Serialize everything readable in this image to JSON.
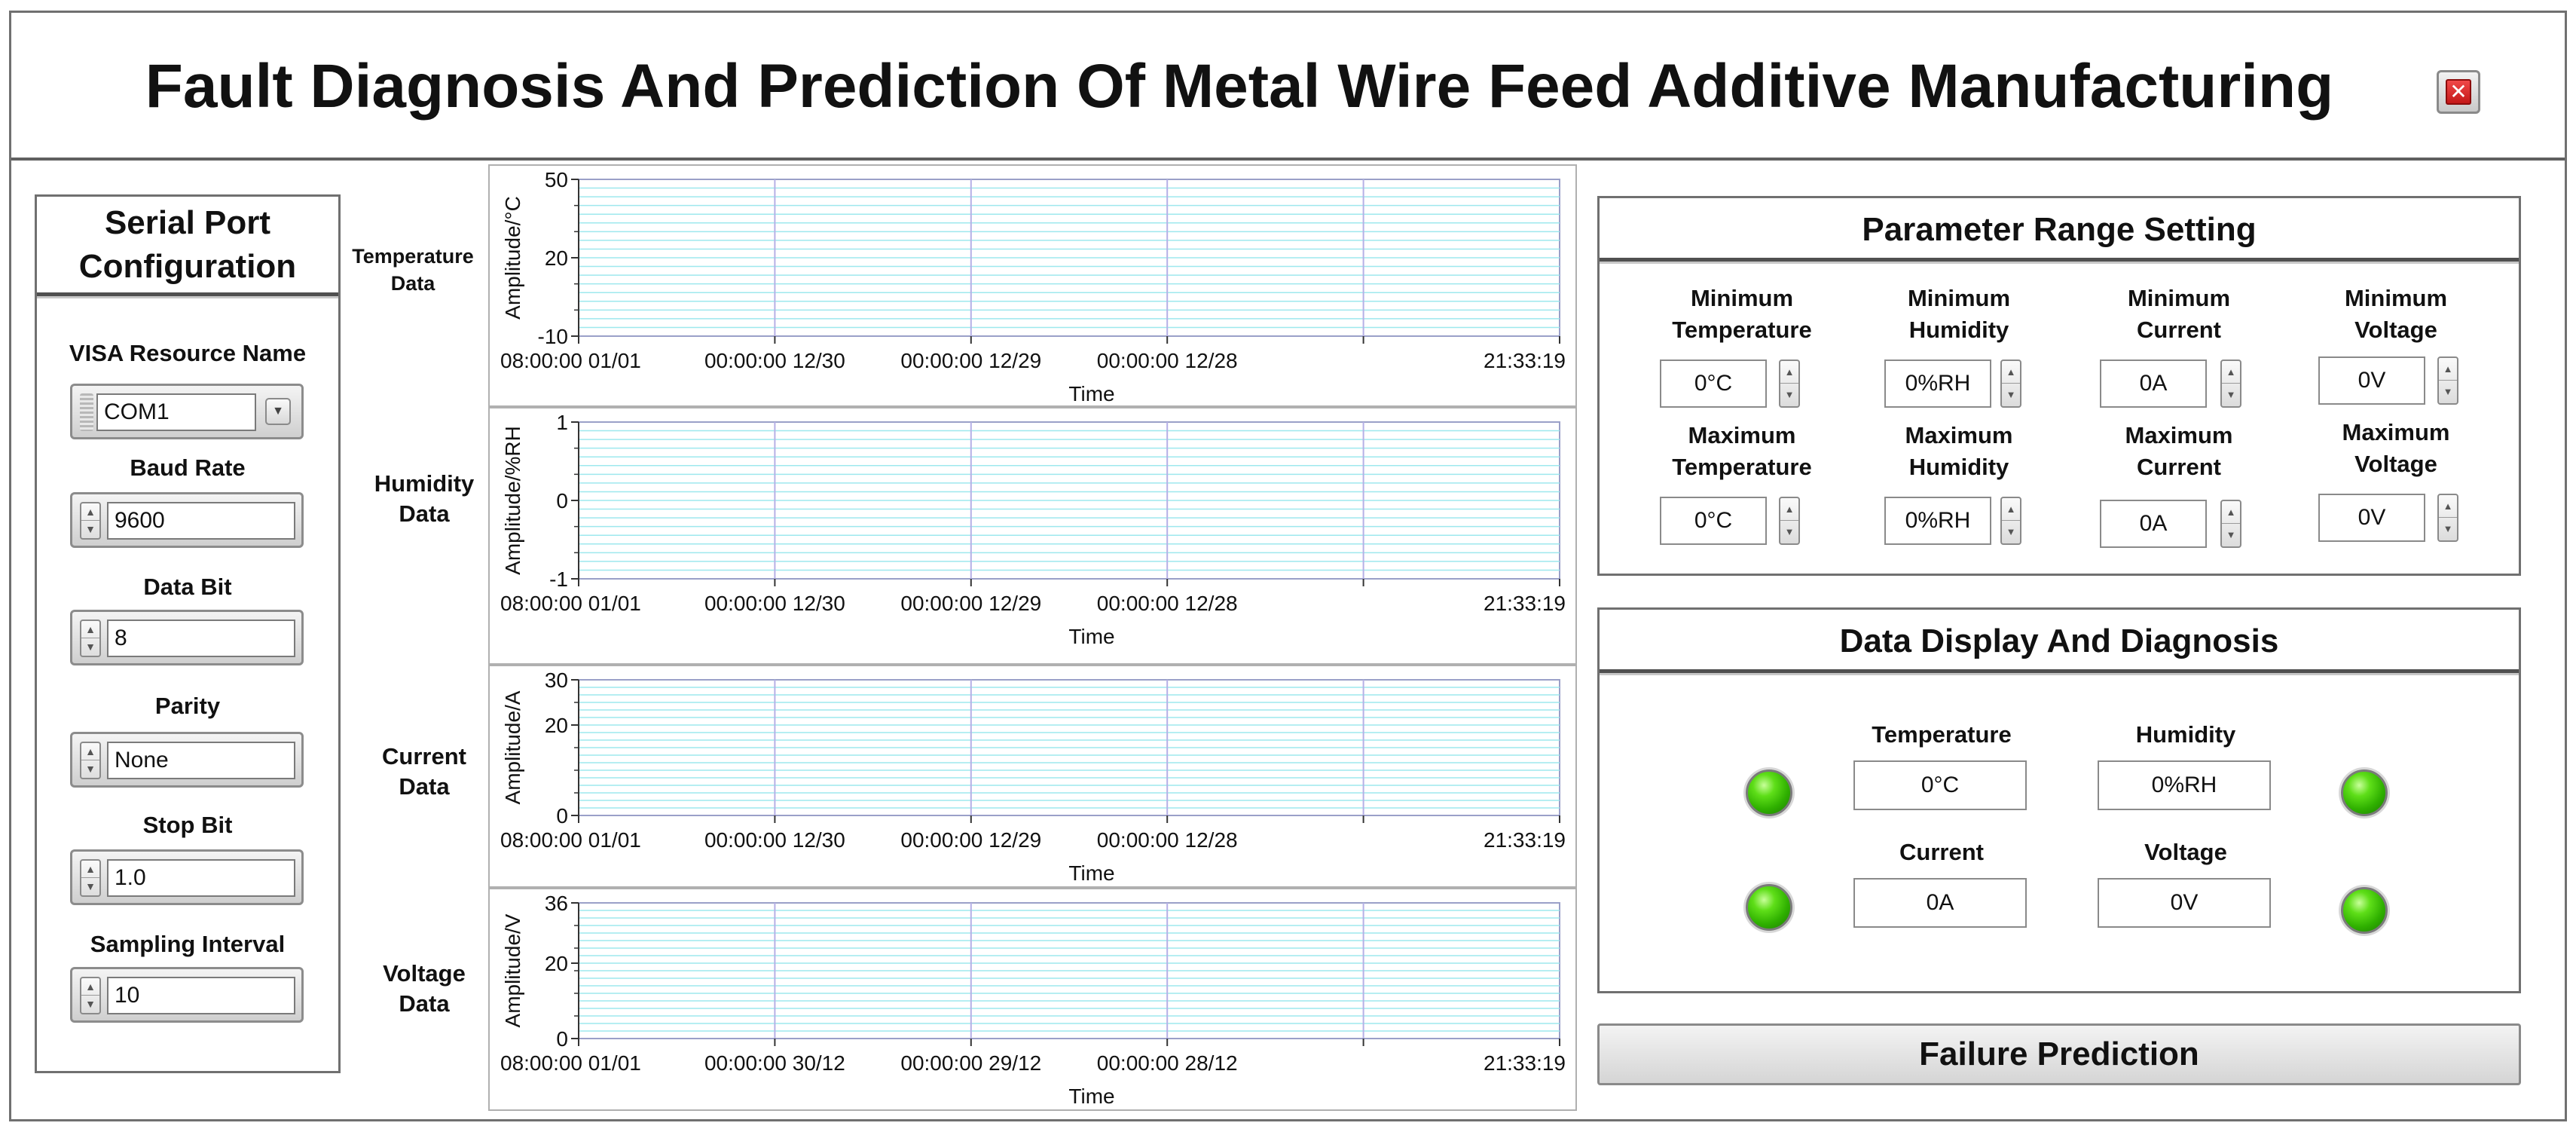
{
  "app": {
    "title": "Fault Diagnosis And Prediction Of Metal Wire Feed Additive Manufacturing",
    "close_icon": "close-icon"
  },
  "serial": {
    "header": "Serial Port Configuration",
    "visa_label": "VISA Resource Name",
    "visa_value": "COM1",
    "baud_label": "Baud Rate",
    "baud_value": "9600",
    "databit_label": "Data Bit",
    "databit_value": "8",
    "parity_label": "Parity",
    "parity_value": "None",
    "stopbit_label": "Stop Bit",
    "stopbit_value": "1.0",
    "sampling_label": "Sampling Interval",
    "sampling_value": "10"
  },
  "charts": [
    {
      "label": "Temperature Data",
      "ylabel": "Amplitude/°C",
      "xlabel": "Time",
      "ylim": [
        -10,
        50
      ],
      "yticks": [
        "50",
        "20",
        "-10"
      ],
      "xticks": [
        "08:00:00 01/01",
        "00:00:00 12/30",
        "00:00:00 12/29",
        "00:00:00 12/28",
        "21:33:19"
      ]
    },
    {
      "label": "Humidity Data",
      "ylabel": "Amplitude/%RH",
      "xlabel": "Time",
      "ylim": [
        -1,
        1
      ],
      "yticks": [
        "1",
        "0",
        "-1"
      ],
      "xticks": [
        "08:00:00 01/01",
        "00:00:00 12/30",
        "00:00:00 12/29",
        "00:00:00 12/28",
        "21:33:19"
      ]
    },
    {
      "label": "Current Data",
      "ylabel": "Amplitude/A",
      "xlabel": "Time",
      "ylim": [
        0,
        30
      ],
      "yticks": [
        "30",
        "20",
        "0"
      ],
      "xticks": [
        "08:00:00 01/01",
        "00:00:00 12/30",
        "00:00:00 12/29",
        "00:00:00 12/28",
        "21:33:19"
      ]
    },
    {
      "label": "Voltage Data",
      "ylabel": "Amplitude/V",
      "xlabel": "Time",
      "ylim": [
        0,
        36
      ],
      "yticks": [
        "36",
        "20",
        "0"
      ],
      "xticks": [
        "08:00:00 01/01",
        "00:00:00 30/12",
        "00:00:00 29/12",
        "00:00:00 28/12",
        "21:33:19"
      ]
    }
  ],
  "params": {
    "header": "Parameter Range Setting",
    "min_temp_label": "Minimum Temperature",
    "min_temp_value": "0°C",
    "min_hum_label": "Minimum Humidity",
    "min_hum_value": "0%RH",
    "min_cur_label": "Minimum Current",
    "min_cur_value": "0A",
    "min_volt_label": "Minimum Voltage",
    "min_volt_value": "0V",
    "max_temp_label": "Maximum Temperature",
    "max_temp_value": "0°C",
    "max_hum_label": "Maximum Humidity",
    "max_hum_value": "0%RH",
    "max_cur_label": "Maximum Current",
    "max_cur_value": "0A",
    "max_volt_label": "Maximum Voltage",
    "max_volt_value": "0V"
  },
  "diag": {
    "header": "Data Display And Diagnosis",
    "temp_label": "Temperature",
    "temp_value": "0°C",
    "hum_label": "Humidity",
    "hum_value": "0%RH",
    "cur_label": "Current",
    "cur_value": "0A",
    "volt_label": "Voltage",
    "volt_value": "0V",
    "led_color": "#3cc40a"
  },
  "prediction": {
    "button_label": "Failure Prediction"
  }
}
